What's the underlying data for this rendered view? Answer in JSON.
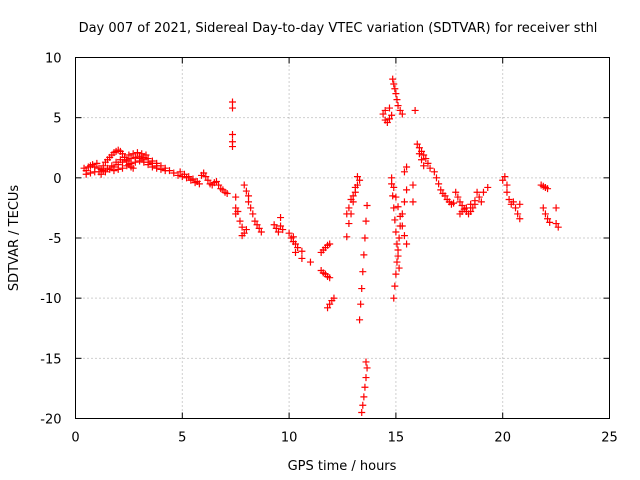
{
  "chart_data": {
    "type": "scatter",
    "title": "Day 007 of 2021, Sidereal Day-to-day VTEC variation (SDTVAR) for receiver sthl",
    "xlabel": "GPS time / hours",
    "ylabel": "SDTVAR / TECUs",
    "xlim": [
      0,
      25
    ],
    "ylim": [
      -20,
      10
    ],
    "xticks": [
      0,
      5,
      10,
      15,
      20,
      25
    ],
    "yticks": [
      -20,
      -15,
      -10,
      -5,
      0,
      5,
      10
    ],
    "xtick_labels": [
      "0",
      "5",
      "10",
      "15",
      "20",
      "25"
    ],
    "ytick_labels": [
      "-20",
      "-15",
      "-10",
      "-5",
      "0",
      "5",
      "10"
    ],
    "grid": true,
    "marker": "+",
    "marker_color": "#ff0000",
    "series": [
      {
        "name": "SDTVAR",
        "points": [
          [
            0.4,
            0.8
          ],
          [
            0.5,
            0.6
          ],
          [
            0.6,
            0.9
          ],
          [
            0.7,
            1.0
          ],
          [
            0.8,
            1.1
          ],
          [
            0.9,
            0.9
          ],
          [
            1.0,
            1.2
          ],
          [
            1.1,
            0.8
          ],
          [
            1.2,
            0.7
          ],
          [
            1.3,
            1.0
          ],
          [
            1.4,
            1.3
          ],
          [
            1.5,
            1.5
          ],
          [
            1.6,
            1.7
          ],
          [
            1.7,
            1.9
          ],
          [
            1.8,
            2.1
          ],
          [
            1.9,
            2.2
          ],
          [
            2.0,
            2.3
          ],
          [
            2.1,
            2.2
          ],
          [
            2.2,
            2.0
          ],
          [
            2.3,
            1.7
          ],
          [
            2.4,
            1.4
          ],
          [
            2.5,
            1.1
          ],
          [
            2.6,
            0.9
          ],
          [
            2.7,
            0.8
          ],
          [
            0.5,
            0.3
          ],
          [
            0.7,
            0.4
          ],
          [
            0.9,
            0.5
          ],
          [
            1.1,
            0.5
          ],
          [
            1.3,
            0.6
          ],
          [
            1.5,
            0.8
          ],
          [
            1.7,
            1.0
          ],
          [
            1.9,
            1.3
          ],
          [
            2.1,
            1.5
          ],
          [
            2.3,
            1.7
          ],
          [
            2.5,
            1.9
          ],
          [
            2.7,
            2.0
          ],
          [
            2.9,
            2.1
          ],
          [
            3.1,
            2.0
          ],
          [
            3.3,
            1.9
          ],
          [
            1.2,
            0.3
          ],
          [
            1.4,
            0.5
          ],
          [
            1.6,
            0.7
          ],
          [
            1.8,
            0.9
          ],
          [
            2.0,
            1.1
          ],
          [
            2.2,
            1.3
          ],
          [
            2.4,
            1.5
          ],
          [
            2.6,
            1.6
          ],
          [
            2.8,
            1.7
          ],
          [
            3.0,
            1.6
          ],
          [
            3.2,
            1.5
          ],
          [
            3.4,
            1.3
          ],
          [
            3.6,
            1.2
          ],
          [
            3.8,
            1.0
          ],
          [
            1.8,
            0.6
          ],
          [
            2.0,
            0.7
          ],
          [
            2.2,
            0.8
          ],
          [
            2.4,
            1.0
          ],
          [
            2.6,
            1.2
          ],
          [
            2.8,
            1.3
          ],
          [
            3.0,
            1.4
          ],
          [
            3.2,
            1.3
          ],
          [
            3.4,
            1.1
          ],
          [
            3.6,
            0.9
          ],
          [
            3.8,
            0.8
          ],
          [
            4.0,
            0.7
          ],
          [
            4.2,
            0.6
          ],
          [
            3.0,
            1.8
          ],
          [
            3.2,
            1.7
          ],
          [
            3.4,
            1.6
          ],
          [
            3.6,
            1.4
          ],
          [
            3.8,
            1.2
          ],
          [
            4.0,
            1.0
          ],
          [
            4.2,
            0.8
          ],
          [
            4.4,
            0.6
          ],
          [
            4.6,
            0.4
          ],
          [
            4.8,
            0.2
          ],
          [
            5.0,
            0.1
          ],
          [
            5.2,
            0.0
          ],
          [
            5.4,
            -0.2
          ],
          [
            5.6,
            -0.4
          ],
          [
            5.8,
            -0.5
          ],
          [
            4.9,
            0.5
          ],
          [
            5.1,
            0.3
          ],
          [
            5.3,
            0.1
          ],
          [
            5.5,
            -0.1
          ],
          [
            5.7,
            -0.3
          ],
          [
            5.9,
            0.2
          ],
          [
            6.0,
            0.4
          ],
          [
            6.1,
            0.1
          ],
          [
            6.2,
            -0.2
          ],
          [
            6.3,
            -0.5
          ],
          [
            6.4,
            -0.6
          ],
          [
            6.5,
            -0.4
          ],
          [
            6.6,
            -0.3
          ],
          [
            6.7,
            -0.6
          ],
          [
            6.8,
            -0.9
          ],
          [
            6.9,
            -1.0
          ],
          [
            7.0,
            -1.2
          ],
          [
            7.1,
            -1.3
          ],
          [
            7.35,
            6.3
          ],
          [
            7.35,
            5.8
          ],
          [
            7.35,
            3.6
          ],
          [
            7.35,
            3.0
          ],
          [
            7.35,
            2.6
          ],
          [
            7.5,
            -1.6
          ],
          [
            7.5,
            -2.5
          ],
          [
            7.5,
            -3.0
          ],
          [
            7.6,
            -2.8
          ],
          [
            7.7,
            -3.6
          ],
          [
            7.8,
            -4.1
          ],
          [
            7.8,
            -4.8
          ],
          [
            7.9,
            -4.6
          ],
          [
            8.0,
            -4.3
          ],
          [
            8.1,
            -2.0
          ],
          [
            8.2,
            -2.5
          ],
          [
            8.3,
            -3.0
          ],
          [
            8.4,
            -3.6
          ],
          [
            8.5,
            -3.9
          ],
          [
            8.6,
            -4.2
          ],
          [
            8.7,
            -4.5
          ],
          [
            7.9,
            -0.6
          ],
          [
            8.0,
            -1.1
          ],
          [
            8.1,
            -1.5
          ],
          [
            9.3,
            -3.9
          ],
          [
            9.4,
            -4.2
          ],
          [
            9.5,
            -4.5
          ],
          [
            9.6,
            -4.0
          ],
          [
            9.7,
            -4.3
          ],
          [
            9.6,
            -3.3
          ],
          [
            10.0,
            -4.6
          ],
          [
            10.1,
            -5.0
          ],
          [
            10.2,
            -5.3
          ],
          [
            10.3,
            -5.5
          ],
          [
            10.4,
            -5.8
          ],
          [
            10.2,
            -4.9
          ],
          [
            10.3,
            -6.2
          ],
          [
            10.6,
            -6.1
          ],
          [
            10.6,
            -6.7
          ],
          [
            11.0,
            -7.0
          ],
          [
            11.5,
            -6.2
          ],
          [
            11.6,
            -6.0
          ],
          [
            11.7,
            -5.8
          ],
          [
            11.8,
            -5.6
          ],
          [
            11.9,
            -5.5
          ],
          [
            11.5,
            -7.7
          ],
          [
            11.6,
            -7.9
          ],
          [
            11.7,
            -8.0
          ],
          [
            11.8,
            -8.2
          ],
          [
            11.9,
            -8.3
          ],
          [
            11.8,
            -10.8
          ],
          [
            11.9,
            -10.5
          ],
          [
            12.0,
            -10.2
          ],
          [
            12.1,
            -10.0
          ],
          [
            12.7,
            -4.9
          ],
          [
            12.8,
            -3.8
          ],
          [
            12.9,
            -3.0
          ],
          [
            13.0,
            -2.0
          ],
          [
            13.1,
            -1.2
          ],
          [
            13.2,
            -0.6
          ],
          [
            13.3,
            -0.2
          ],
          [
            12.7,
            -3.0
          ],
          [
            12.8,
            -2.5
          ],
          [
            12.9,
            -1.8
          ],
          [
            13.0,
            -1.5
          ],
          [
            13.1,
            -0.8
          ],
          [
            13.2,
            0.1
          ],
          [
            13.3,
            -11.8
          ],
          [
            13.35,
            -10.5
          ],
          [
            13.4,
            -9.2
          ],
          [
            13.45,
            -7.8
          ],
          [
            13.5,
            -6.4
          ],
          [
            13.55,
            -5.0
          ],
          [
            13.6,
            -3.6
          ],
          [
            13.65,
            -2.3
          ],
          [
            13.4,
            -19.5
          ],
          [
            13.45,
            -18.9
          ],
          [
            13.5,
            -18.2
          ],
          [
            13.55,
            -17.4
          ],
          [
            13.6,
            -16.6
          ],
          [
            13.65,
            -15.8
          ],
          [
            13.6,
            -15.3
          ],
          [
            14.4,
            5.3
          ],
          [
            14.5,
            4.8
          ],
          [
            14.6,
            4.6
          ],
          [
            14.7,
            4.9
          ],
          [
            14.8,
            5.2
          ],
          [
            14.5,
            5.6
          ],
          [
            14.7,
            5.8
          ],
          [
            14.85,
            8.2
          ],
          [
            14.9,
            7.8
          ],
          [
            14.95,
            7.4
          ],
          [
            15.0,
            7.0
          ],
          [
            15.05,
            6.5
          ],
          [
            15.1,
            6.0
          ],
          [
            15.2,
            5.6
          ],
          [
            15.3,
            5.3
          ],
          [
            14.8,
            -0.5
          ],
          [
            14.85,
            -1.5
          ],
          [
            14.9,
            -2.5
          ],
          [
            14.95,
            -3.5
          ],
          [
            15.0,
            -4.5
          ],
          [
            15.05,
            -5.5
          ],
          [
            15.1,
            -6.5
          ],
          [
            15.15,
            -7.5
          ],
          [
            14.9,
            -10.0
          ],
          [
            14.95,
            -9.0
          ],
          [
            15.0,
            -8.0
          ],
          [
            15.05,
            -7.0
          ],
          [
            15.1,
            -6.0
          ],
          [
            15.15,
            -5.0
          ],
          [
            15.2,
            -4.0
          ],
          [
            15.3,
            -3.0
          ],
          [
            15.4,
            -2.0
          ],
          [
            15.5,
            -1.0
          ],
          [
            15.4,
            0.5
          ],
          [
            15.5,
            0.9
          ],
          [
            14.8,
            0.0
          ],
          [
            14.9,
            -0.8
          ],
          [
            15.0,
            -1.6
          ],
          [
            15.1,
            -2.4
          ],
          [
            15.2,
            -3.2
          ],
          [
            15.3,
            -4.0
          ],
          [
            15.4,
            -4.8
          ],
          [
            15.5,
            -5.5
          ],
          [
            15.8,
            -0.6
          ],
          [
            15.8,
            -2.0
          ],
          [
            15.9,
            5.6
          ],
          [
            16.0,
            2.8
          ],
          [
            16.1,
            2.5
          ],
          [
            16.2,
            2.2
          ],
          [
            16.3,
            1.9
          ],
          [
            16.4,
            1.6
          ],
          [
            16.5,
            1.2
          ],
          [
            16.6,
            0.8
          ],
          [
            16.1,
            2.0
          ],
          [
            16.2,
            1.5
          ],
          [
            16.3,
            1.0
          ],
          [
            16.8,
            0.5
          ],
          [
            16.9,
            0.0
          ],
          [
            17.0,
            -0.5
          ],
          [
            17.1,
            -1.0
          ],
          [
            17.2,
            -1.3
          ],
          [
            17.3,
            -1.5
          ],
          [
            17.4,
            -1.8
          ],
          [
            17.5,
            -2.0
          ],
          [
            17.6,
            -2.2
          ],
          [
            17.7,
            -2.1
          ],
          [
            17.8,
            -1.2
          ],
          [
            17.9,
            -1.6
          ],
          [
            18.0,
            -2.0
          ],
          [
            18.1,
            -2.3
          ],
          [
            18.2,
            -2.6
          ],
          [
            18.3,
            -2.8
          ],
          [
            18.4,
            -3.0
          ],
          [
            18.5,
            -2.8
          ],
          [
            18.6,
            -2.5
          ],
          [
            18.7,
            -2.2
          ],
          [
            18.0,
            -3.0
          ],
          [
            18.1,
            -2.8
          ],
          [
            18.3,
            -2.5
          ],
          [
            18.5,
            -2.2
          ],
          [
            18.7,
            -1.9
          ],
          [
            18.9,
            -1.6
          ],
          [
            19.1,
            -1.2
          ],
          [
            19.3,
            -0.8
          ],
          [
            18.8,
            -1.2
          ],
          [
            19.0,
            -2.0
          ],
          [
            20.0,
            -0.2
          ],
          [
            20.1,
            0.1
          ],
          [
            20.2,
            -0.6
          ],
          [
            20.2,
            -1.2
          ],
          [
            20.3,
            -1.8
          ],
          [
            20.4,
            -2.2
          ],
          [
            20.5,
            -2.0
          ],
          [
            20.6,
            -2.5
          ],
          [
            20.7,
            -3.0
          ],
          [
            20.8,
            -3.4
          ],
          [
            20.8,
            -2.2
          ],
          [
            21.8,
            -0.6
          ],
          [
            21.9,
            -0.7
          ],
          [
            22.0,
            -0.8
          ],
          [
            22.1,
            -0.9
          ],
          [
            21.9,
            -2.5
          ],
          [
            22.0,
            -3.0
          ],
          [
            22.1,
            -3.4
          ],
          [
            22.2,
            -3.7
          ],
          [
            22.5,
            -2.5
          ],
          [
            22.5,
            -3.8
          ],
          [
            22.6,
            -4.1
          ]
        ]
      }
    ]
  }
}
